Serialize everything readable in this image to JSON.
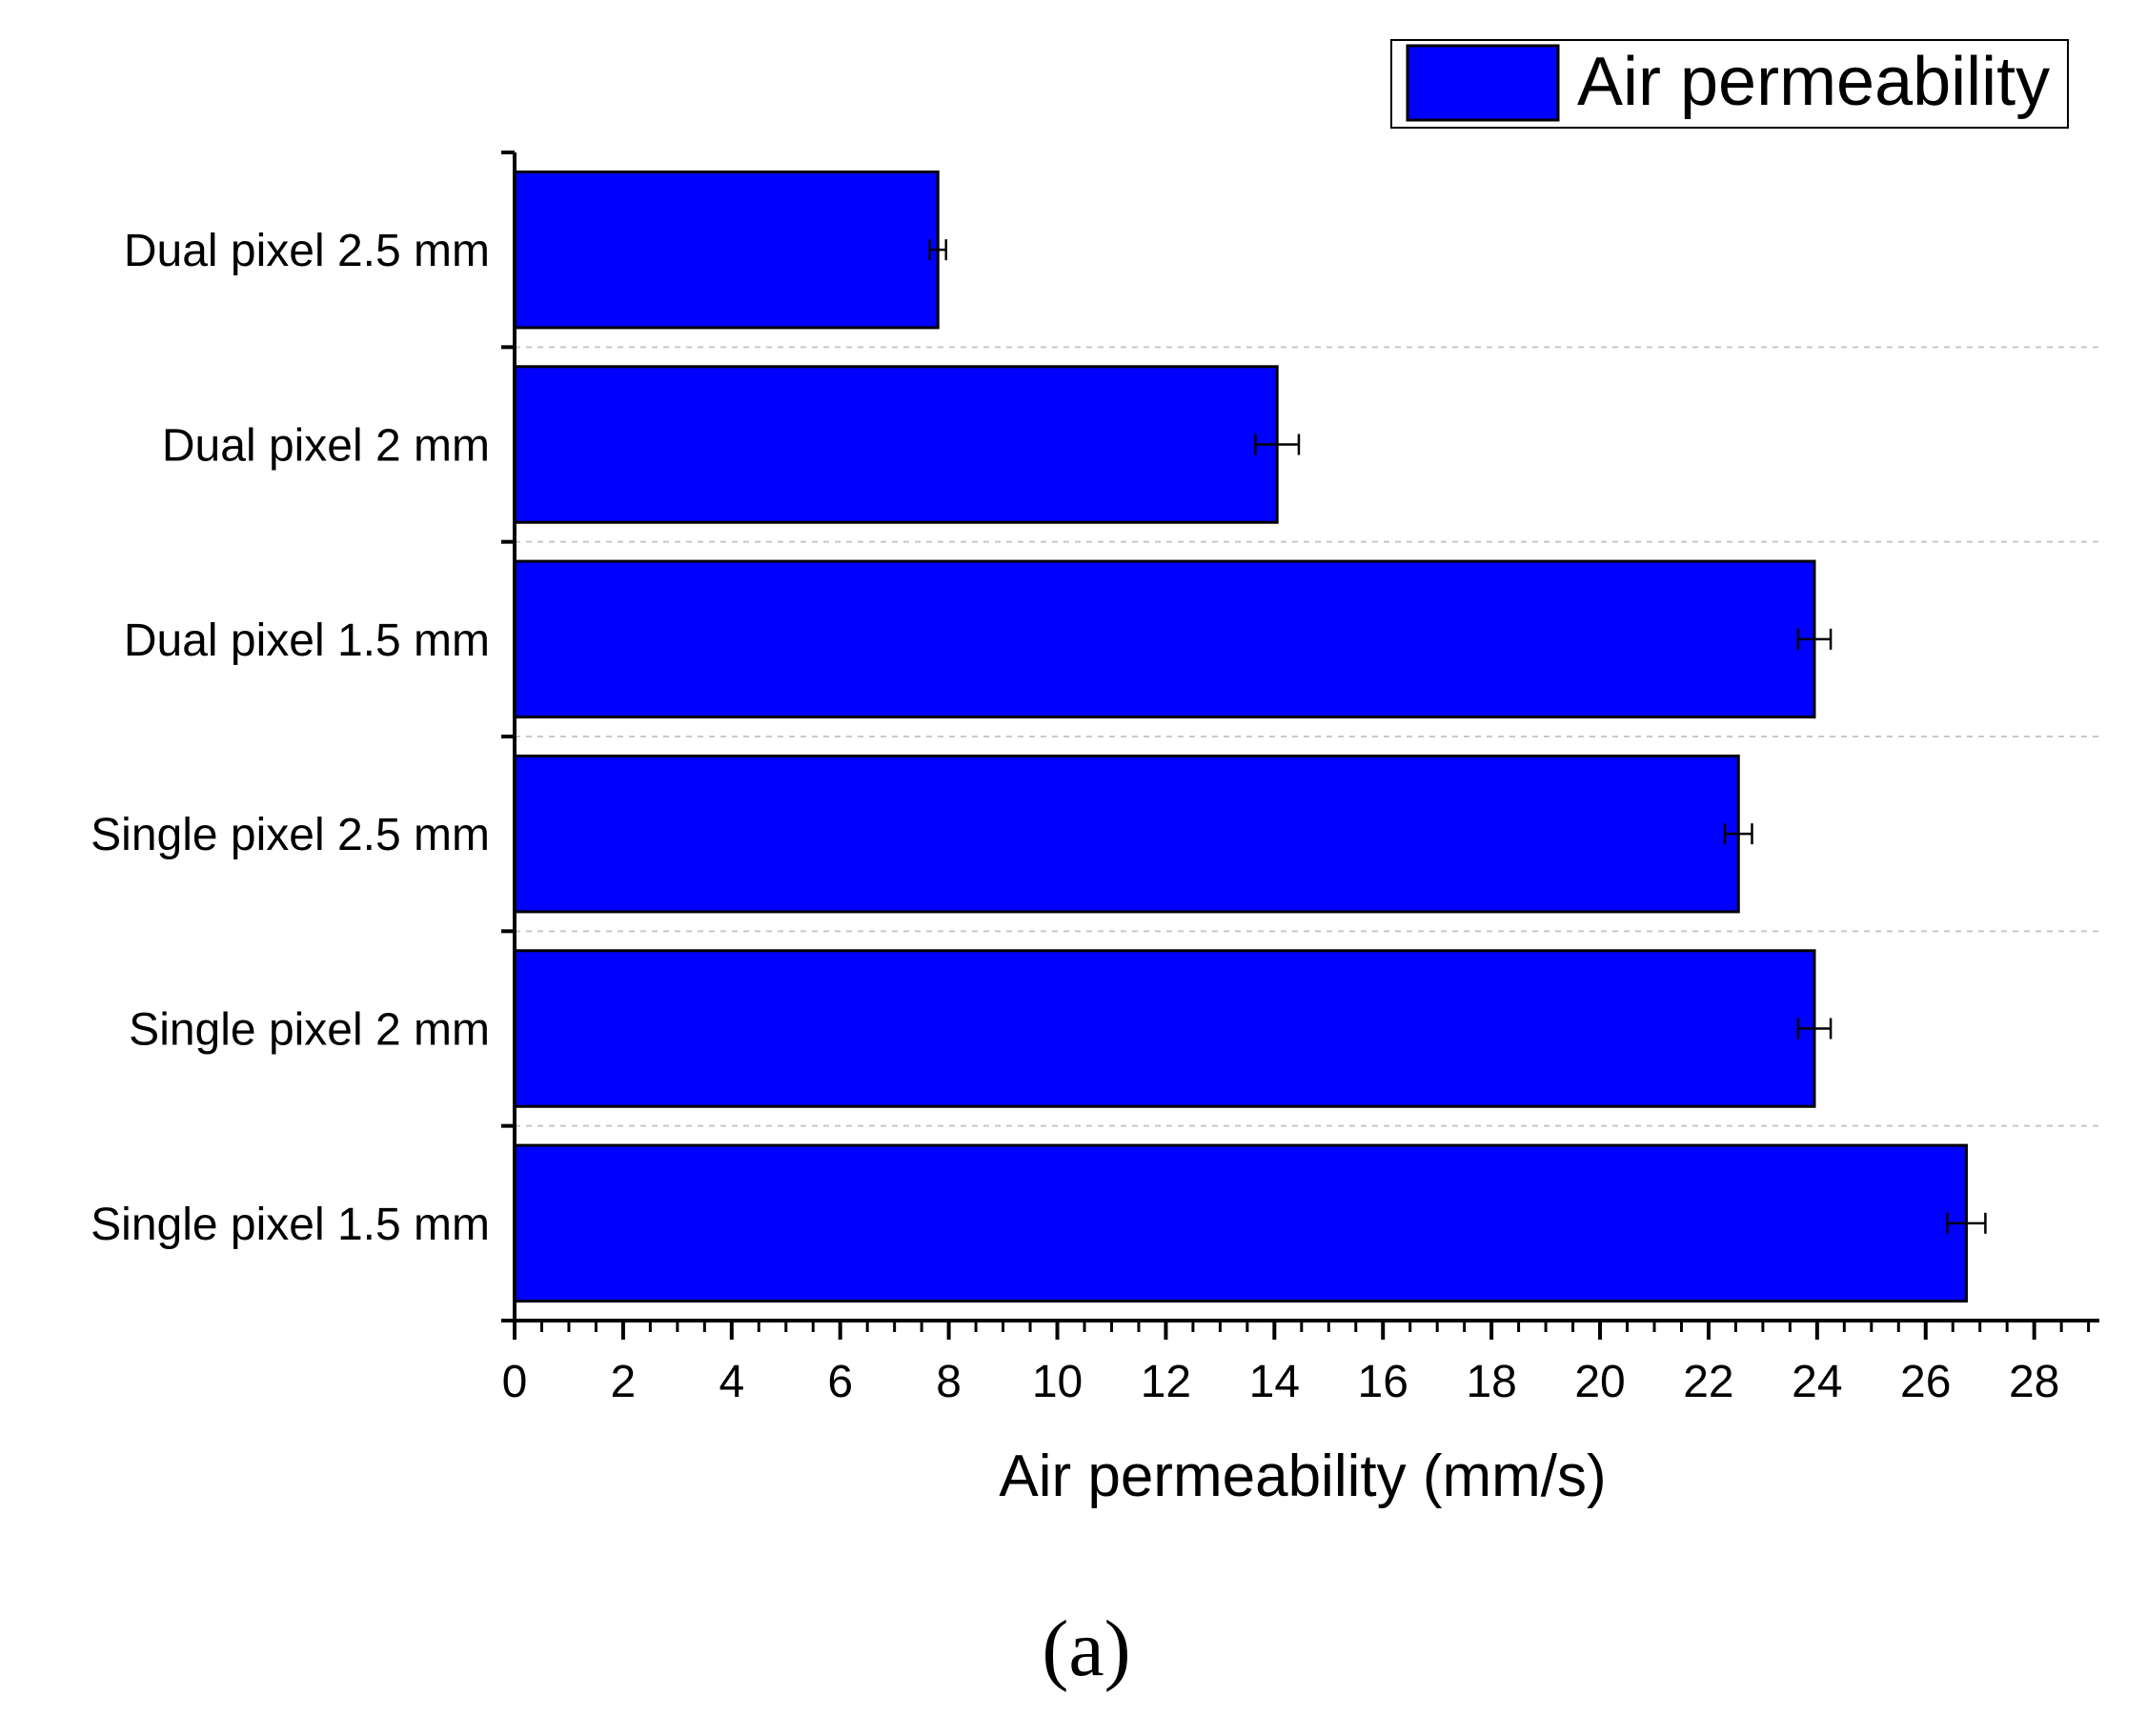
{
  "chart_data": {
    "type": "bar",
    "orientation": "horizontal",
    "categories": [
      "Dual pixel 2.5 mm",
      "Dual pixel 2 mm",
      "Dual pixel 1.5 mm",
      "Single pixel 2.5 mm",
      "Single pixel 2 mm",
      "Single pixel 1.5 mm"
    ],
    "series": [
      {
        "name": "Air permeability",
        "values": [
          7.8,
          14.05,
          23.95,
          22.55,
          23.95,
          26.75
        ],
        "errors": [
          0.15,
          0.4,
          0.3,
          0.25,
          0.3,
          0.35
        ],
        "color": "#0000ff"
      }
    ],
    "xlabel": "Air permeability (mm/s)",
    "ylabel": "",
    "xlim": [
      0,
      29.2
    ],
    "xticks": [
      "0",
      "2",
      "4",
      "6",
      "8",
      "10",
      "12",
      "14",
      "16",
      "18",
      "20",
      "22",
      "24",
      "26",
      "28"
    ],
    "grid": "horizontal dashed separators",
    "legend": "top-right",
    "panel_label": "(a)"
  }
}
